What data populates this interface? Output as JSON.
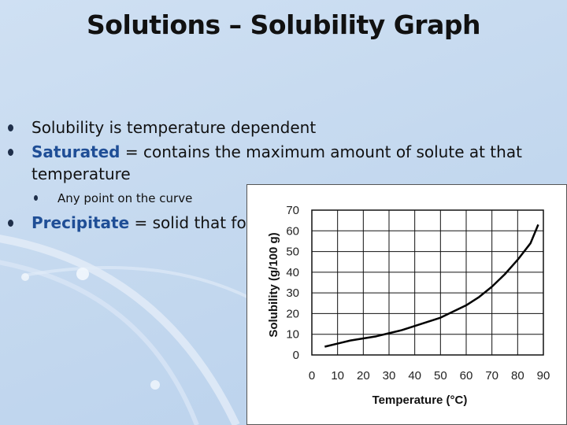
{
  "slide": {
    "title": "Solutions – Solubility Graph",
    "bullets": [
      {
        "text": "Solubility is temperature dependent"
      },
      {
        "term": "Saturated",
        "rest": " = contains the maximum amount of solute at that",
        "rest2": "temperature"
      },
      {
        "sub": "Any point on the curve"
      },
      {
        "term": "Precipitate",
        "rest": " = solid that forms"
      }
    ],
    "colors": {
      "accent": "#1f4e96",
      "background": "#c5d9ef"
    }
  },
  "chart_data": {
    "type": "line",
    "xlabel": "Temperature (°C)",
    "ylabel": "Solubility (g/100 g)",
    "xlim": [
      0,
      90
    ],
    "ylim": [
      0,
      70
    ],
    "grid": true,
    "x_ticks": [
      "0",
      "10",
      "20",
      "30",
      "40",
      "50",
      "60",
      "70",
      "80",
      "90"
    ],
    "y_ticks": [
      "0",
      "10",
      "20",
      "30",
      "40",
      "50",
      "60",
      "70"
    ],
    "series": [
      {
        "x": [
          5,
          10,
          15,
          20,
          25,
          30,
          35,
          40,
          45,
          50,
          55,
          60,
          65,
          70,
          75,
          80,
          85,
          88
        ],
        "y": [
          4,
          5.5,
          7,
          8,
          9,
          10.5,
          12,
          14,
          16,
          18,
          21,
          24,
          28,
          33,
          39,
          46,
          54,
          63
        ]
      }
    ]
  }
}
